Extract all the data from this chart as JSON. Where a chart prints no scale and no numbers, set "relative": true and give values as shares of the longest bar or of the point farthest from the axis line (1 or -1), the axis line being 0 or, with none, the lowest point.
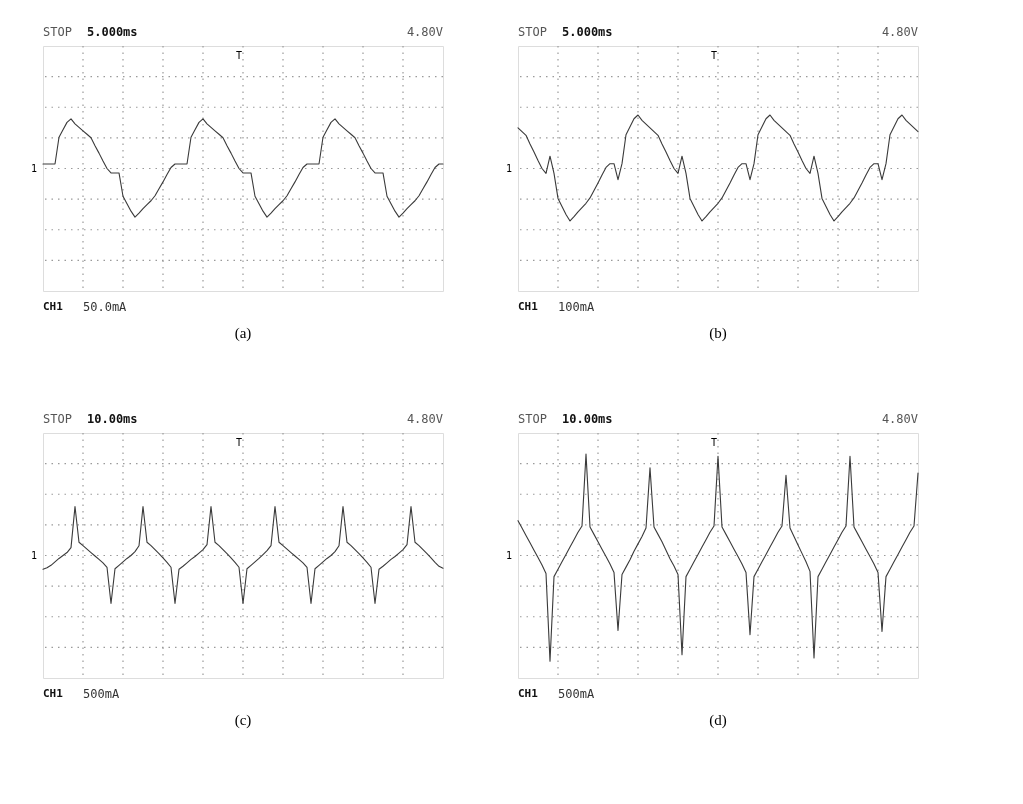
{
  "chart_data": [
    {
      "type": "line",
      "relative": true,
      "grid": true,
      "categories": [
        null,
        null,
        null,
        null,
        null,
        null,
        null,
        null,
        null,
        null,
        null,
        null,
        null,
        null,
        null,
        null,
        null,
        null,
        null,
        null,
        null,
        null,
        null,
        null,
        null,
        null,
        null,
        null,
        null,
        null,
        null,
        null,
        null,
        null,
        null,
        null,
        null,
        null,
        null,
        null,
        null,
        null,
        null,
        null,
        null,
        null,
        null,
        null,
        null,
        null,
        null,
        null,
        null,
        null,
        null,
        null,
        null,
        null,
        null,
        null,
        null,
        null,
        null,
        null,
        null,
        null,
        null,
        null,
        null,
        null,
        null,
        null,
        null,
        null,
        null,
        null,
        null,
        null,
        null,
        null,
        null,
        null,
        null,
        null,
        null,
        null,
        null,
        null,
        null,
        null,
        null,
        null,
        null,
        null,
        null,
        null,
        null,
        null,
        null,
        null,
        null
      ],
      "series": [
        {
          "color": "#3a3a3a",
          "values": [
            0.09,
            0.09,
            0.09,
            0.09,
            0.63,
            0.78,
            0.93,
            1.0,
            0.9,
            0.83,
            0.76,
            0.69,
            0.62,
            0.46,
            0.31,
            0.15,
            0,
            -0.09,
            -0.09,
            -0.09,
            -0.56,
            -0.71,
            -0.86,
            -0.98,
            -0.9,
            -0.81,
            -0.73,
            -0.65,
            -0.55,
            -0.41,
            -0.27,
            -0.12,
            0.02,
            0.09,
            0.09,
            0.09,
            0.09,
            0.63,
            0.78,
            0.93,
            1.0,
            0.9,
            0.83,
            0.76,
            0.69,
            0.62,
            0.46,
            0.31,
            0.15,
            0,
            -0.09,
            -0.09,
            -0.09,
            -0.56,
            -0.71,
            -0.86,
            -0.98,
            -0.9,
            -0.81,
            -0.73,
            -0.65,
            -0.55,
            -0.41,
            -0.27,
            -0.12,
            0.02,
            0.09,
            0.09,
            0.09,
            0.09,
            0.63,
            0.78,
            0.93,
            1.0,
            0.9,
            0.83,
            0.76,
            0.69,
            0.62,
            0.46,
            0.31,
            0.15,
            0,
            -0.09,
            -0.09,
            -0.09,
            -0.56,
            -0.71,
            -0.86,
            -0.98,
            -0.9,
            -0.81,
            -0.73,
            -0.65,
            -0.55,
            -0.41,
            -0.27,
            -0.12,
            0.02,
            0.09,
            0.09
          ]
        }
      ],
      "annotations": [
        "STOP",
        "5.000ms",
        "4.80V",
        "CH1",
        "50.0mA",
        "(a)",
        "1",
        "T"
      ]
    },
    {
      "type": "line",
      "relative": true,
      "grid": true,
      "categories": [
        null,
        null,
        null,
        null,
        null,
        null,
        null,
        null,
        null,
        null,
        null,
        null,
        null,
        null,
        null,
        null,
        null,
        null,
        null,
        null,
        null,
        null,
        null,
        null,
        null,
        null,
        null,
        null,
        null,
        null,
        null,
        null,
        null,
        null,
        null,
        null,
        null,
        null,
        null,
        null,
        null,
        null,
        null,
        null,
        null,
        null,
        null,
        null,
        null,
        null,
        null,
        null,
        null,
        null,
        null,
        null,
        null,
        null,
        null,
        null,
        null,
        null,
        null,
        null,
        null,
        null,
        null,
        null,
        null,
        null,
        null,
        null,
        null,
        null,
        null,
        null,
        null,
        null,
        null,
        null,
        null,
        null,
        null,
        null,
        null,
        null,
        null,
        null,
        null,
        null,
        null,
        null,
        null,
        null,
        null,
        null,
        null,
        null,
        null,
        null,
        null
      ],
      "series": [
        {
          "color": "#3a3a3a",
          "values": [
            0.76,
            0.69,
            0.62,
            0.46,
            0.31,
            0.15,
            0,
            -0.09,
            0.23,
            -0.09,
            -0.56,
            -0.71,
            -0.86,
            -0.98,
            -0.9,
            -0.81,
            -0.73,
            -0.65,
            -0.55,
            -0.41,
            -0.27,
            -0.12,
            0.02,
            0.09,
            0.09,
            -0.21,
            0.09,
            0.63,
            0.78,
            0.93,
            1.0,
            0.9,
            0.83,
            0.76,
            0.69,
            0.62,
            0.46,
            0.31,
            0.15,
            0,
            -0.09,
            0.23,
            -0.09,
            -0.56,
            -0.71,
            -0.86,
            -0.98,
            -0.9,
            -0.81,
            -0.73,
            -0.65,
            -0.55,
            -0.41,
            -0.27,
            -0.12,
            0.02,
            0.09,
            0.09,
            -0.21,
            0.09,
            0.63,
            0.78,
            0.93,
            1.0,
            0.9,
            0.83,
            0.76,
            0.69,
            0.62,
            0.46,
            0.31,
            0.15,
            0,
            -0.09,
            0.23,
            -0.09,
            -0.56,
            -0.71,
            -0.86,
            -0.98,
            -0.9,
            -0.81,
            -0.73,
            -0.65,
            -0.55,
            -0.41,
            -0.27,
            -0.12,
            0.02,
            0.09,
            0.09,
            -0.21,
            0.09,
            0.63,
            0.78,
            0.93,
            1.0,
            0.9,
            0.83,
            0.76,
            0.69
          ]
        }
      ],
      "annotations": [
        "STOP",
        "5.000ms",
        "4.80V",
        "CH1",
        "100mA",
        "(b)",
        "1",
        "T"
      ]
    },
    {
      "type": "line",
      "relative": true,
      "grid": true,
      "categories": [
        null,
        null,
        null,
        null,
        null,
        null,
        null,
        null,
        null,
        null,
        null,
        null,
        null,
        null,
        null,
        null,
        null,
        null,
        null,
        null,
        null,
        null,
        null,
        null,
        null,
        null,
        null,
        null,
        null,
        null,
        null,
        null,
        null,
        null,
        null,
        null,
        null,
        null,
        null,
        null,
        null,
        null,
        null,
        null,
        null,
        null,
        null,
        null,
        null,
        null,
        null,
        null,
        null,
        null,
        null,
        null,
        null,
        null,
        null,
        null,
        null,
        null,
        null,
        null,
        null,
        null,
        null,
        null,
        null,
        null,
        null,
        null,
        null,
        null,
        null,
        null,
        null,
        null,
        null,
        null,
        null,
        null,
        null,
        null,
        null,
        null,
        null,
        null,
        null,
        null,
        null,
        null,
        null,
        null,
        null,
        null,
        null,
        null,
        null,
        null,
        null
      ],
      "series": [
        {
          "color": "#3a3a3a",
          "values": [
            -0.28,
            -0.25,
            -0.2,
            -0.13,
            -0.06,
            0.0,
            0.06,
            0.16,
            1.0,
            0.27,
            0.2,
            0.13,
            0.06,
            -0.01,
            -0.08,
            -0.15,
            -0.24,
            -0.98,
            -0.27,
            -0.2,
            -0.13,
            -0.06,
            0.0,
            0.08,
            0.2,
            1.0,
            0.27,
            0.2,
            0.12,
            0.04,
            -0.05,
            -0.14,
            -0.24,
            -0.98,
            -0.28,
            -0.22,
            -0.15,
            -0.08,
            -0.02,
            0.05,
            0.12,
            0.22,
            1.0,
            0.27,
            0.2,
            0.12,
            0.04,
            -0.05,
            -0.14,
            -0.24,
            -0.98,
            -0.27,
            -0.2,
            -0.13,
            -0.06,
            0.02,
            0.1,
            0.2,
            1.0,
            0.27,
            0.2,
            0.13,
            0.06,
            -0.01,
            -0.08,
            -0.15,
            -0.24,
            -0.98,
            -0.27,
            -0.2,
            -0.13,
            -0.06,
            0.0,
            0.08,
            0.2,
            1.0,
            0.27,
            0.2,
            0.12,
            0.04,
            -0.05,
            -0.14,
            -0.24,
            -0.98,
            -0.28,
            -0.22,
            -0.15,
            -0.08,
            -0.02,
            0.05,
            0.12,
            0.22,
            1.0,
            0.27,
            0.2,
            0.12,
            0.04,
            -0.05,
            -0.14,
            -0.22,
            -0.26
          ]
        }
      ],
      "annotations": [
        "STOP",
        "10.00ms",
        "4.80V",
        "CH1",
        "500mA",
        "(c)",
        "1",
        "T"
      ]
    },
    {
      "type": "line",
      "relative": true,
      "grid": true,
      "categories": [
        null,
        null,
        null,
        null,
        null,
        null,
        null,
        null,
        null,
        null,
        null,
        null,
        null,
        null,
        null,
        null,
        null,
        null,
        null,
        null,
        null,
        null,
        null,
        null,
        null,
        null,
        null,
        null,
        null,
        null,
        null,
        null,
        null,
        null,
        null,
        null,
        null,
        null,
        null,
        null,
        null,
        null,
        null,
        null,
        null,
        null,
        null,
        null,
        null,
        null,
        null,
        null,
        null,
        null,
        null,
        null,
        null,
        null,
        null,
        null,
        null,
        null,
        null,
        null,
        null,
        null,
        null,
        null,
        null,
        null,
        null,
        null,
        null,
        null,
        null,
        null,
        null,
        null,
        null,
        null,
        null,
        null,
        null,
        null,
        null,
        null,
        null,
        null,
        null,
        null,
        null,
        null,
        null,
        null,
        null,
        null,
        null,
        null,
        null,
        null,
        null
      ],
      "series": [
        {
          "color": "#3a3a3a",
          "values": [
            0.33,
            0.26,
            0.19,
            0.12,
            0.05,
            -0.02,
            -0.09,
            -0.17,
            -1.0,
            -0.2,
            -0.13,
            -0.06,
            0.01,
            0.08,
            0.15,
            0.22,
            0.28,
            0.96,
            0.27,
            0.2,
            0.13,
            0.06,
            -0.01,
            -0.08,
            -0.16,
            -0.71,
            -0.18,
            -0.11,
            -0.04,
            0.04,
            0.11,
            0.18,
            0.26,
            0.83,
            0.27,
            0.2,
            0.13,
            0.05,
            -0.03,
            -0.1,
            -0.18,
            -0.94,
            -0.2,
            -0.13,
            -0.06,
            0.01,
            0.08,
            0.15,
            0.22,
            0.28,
            0.94,
            0.27,
            0.2,
            0.13,
            0.06,
            -0.01,
            -0.08,
            -0.16,
            -0.75,
            -0.2,
            -0.13,
            -0.06,
            0.01,
            0.08,
            0.15,
            0.22,
            0.28,
            0.76,
            0.26,
            0.18,
            0.1,
            0.02,
            -0.06,
            -0.15,
            -0.97,
            -0.2,
            -0.13,
            -0.06,
            0.01,
            0.08,
            0.15,
            0.22,
            0.28,
            0.94,
            0.27,
            0.2,
            0.13,
            0.06,
            -0.01,
            -0.08,
            -0.16,
            -0.72,
            -0.2,
            -0.13,
            -0.06,
            0.01,
            0.08,
            0.15,
            0.22,
            0.28,
            0.78
          ]
        }
      ],
      "annotations": [
        "STOP",
        "10.00ms",
        "4.80V",
        "CH1",
        "500mA",
        "(d)",
        "1",
        "T"
      ]
    }
  ]
}
